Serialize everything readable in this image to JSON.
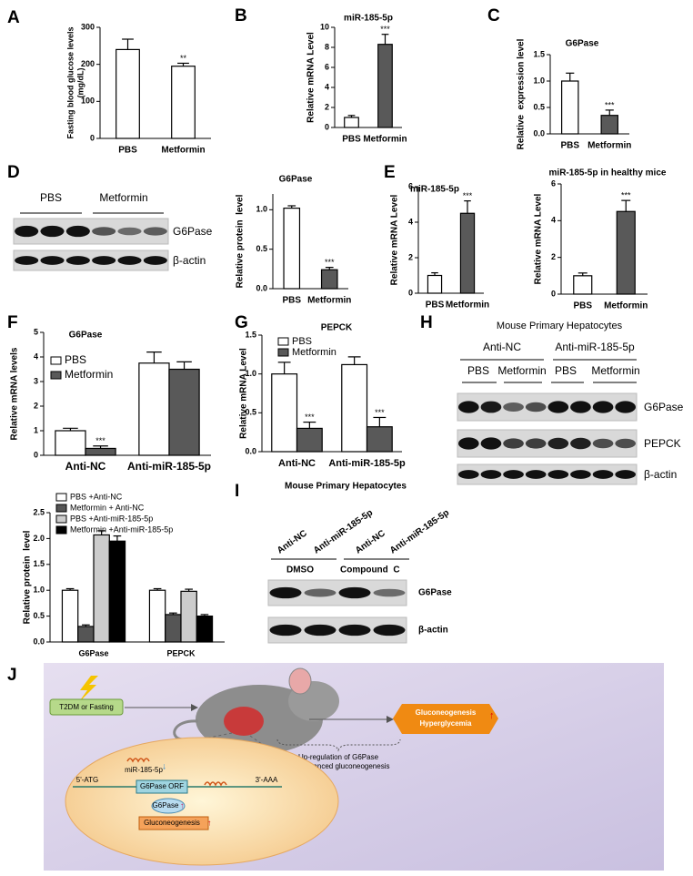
{
  "panel_labels": [
    "A",
    "B",
    "C",
    "D",
    "E",
    "F",
    "G",
    "H",
    "I",
    "J"
  ],
  "chart_data": [
    {
      "type": "bar",
      "y_label": [
        "Fasting blood glucose levels",
        "(mg/dL)"
      ],
      "categories": [
        "PBS",
        "Metformin"
      ],
      "series": [
        {
          "color": "#ffffff",
          "values": [
            240,
            195
          ],
          "errors": [
            28,
            8
          ],
          "annotations": [
            null,
            "**"
          ]
        }
      ],
      "ylim": [
        0,
        300
      ],
      "yticks": [
        0,
        100,
        200,
        300
      ]
    },
    {
      "type": "bar",
      "title": "miR-185-5p",
      "y_label": "Relative mRNA Level",
      "categories": [
        "PBS",
        "Metformin"
      ],
      "series": [
        {
          "color": "#595959",
          "values": [
            1,
            8.3
          ],
          "errors": [
            0.2,
            1.0
          ],
          "annotations": [
            null,
            "***"
          ]
        }
      ],
      "bar_colors": [
        "#ffffff",
        "#595959"
      ],
      "ylim": [
        0,
        10
      ],
      "yticks": [
        0,
        2,
        4,
        6,
        8,
        10
      ]
    },
    {
      "type": "bar",
      "title": "G6Pase",
      "y_label": "Relative  expression level",
      "categories": [
        "PBS",
        "Metformin"
      ],
      "series": [
        {
          "color": "#595959",
          "values": [
            1.0,
            0.35
          ],
          "errors": [
            0.15,
            0.1
          ],
          "annotations": [
            null,
            "***"
          ]
        }
      ],
      "bar_colors": [
        "#ffffff",
        "#595959"
      ],
      "ylim": [
        0,
        1.5
      ],
      "yticks": [
        {
          "value": 0,
          "label": "0.0"
        },
        0.5,
        {
          "value": 1,
          "label": "1.0"
        },
        1.5
      ]
    },
    {
      "type": "bar",
      "title": "G6Pase",
      "y_label": "Relative protein  level",
      "categories": [
        "PBS",
        "Metformin"
      ],
      "series": [
        {
          "color": "#595959",
          "values": [
            1.02,
            0.24
          ],
          "errors": [
            0.03,
            0.03
          ],
          "annotations": [
            null,
            "***"
          ]
        }
      ],
      "bar_colors": [
        "#ffffff",
        "#595959"
      ],
      "ylim": [
        0,
        1.2
      ],
      "yticks": [
        {
          "value": 0,
          "label": "0.0"
        },
        0.5,
        {
          "value": 1,
          "label": "1.0"
        }
      ]
    },
    {
      "type": "bar",
      "title": "miR-185-5p",
      "y_label": "Relative mRNA Level",
      "categories": [
        "PBS",
        "Metformin"
      ],
      "series": [
        {
          "color": "#595959",
          "values": [
            1.0,
            4.5
          ],
          "errors": [
            0.15,
            0.7
          ],
          "annotations": [
            null,
            "***"
          ]
        }
      ],
      "bar_colors": [
        "#ffffff",
        "#595959"
      ],
      "ylim": [
        0,
        6
      ],
      "yticks": [
        0,
        2,
        4,
        6
      ]
    },
    {
      "type": "bar",
      "title": "miR-185-5p in healthy mice",
      "y_label": "Relative mRNA Level",
      "categories": [
        "PBS",
        "Metformin"
      ],
      "series": [
        {
          "color": "#595959",
          "values": [
            1.0,
            4.5
          ],
          "errors": [
            0.15,
            0.6
          ],
          "annotations": [
            null,
            "***"
          ]
        }
      ],
      "bar_colors": [
        "#ffffff",
        "#595959"
      ],
      "ylim": [
        0,
        6
      ],
      "yticks": [
        0,
        2,
        4,
        6
      ]
    },
    {
      "type": "bar",
      "title": "G6Pase",
      "y_label": "Relative mRNA levels",
      "categories": [
        "Anti-NC",
        "Anti-miR-185-5p"
      ],
      "series": [
        {
          "name": "PBS",
          "color": "#ffffff",
          "values": [
            1.0,
            3.75
          ],
          "errors": [
            0.1,
            0.45
          ],
          "annotations": [
            null,
            null
          ]
        },
        {
          "name": "Metformin",
          "color": "#595959",
          "values": [
            0.28,
            3.5
          ],
          "errors": [
            0.1,
            0.3
          ],
          "annotations": [
            "***",
            null
          ]
        }
      ],
      "ylim": [
        0,
        5
      ],
      "yticks": [
        0,
        1,
        2,
        3,
        4,
        5
      ]
    },
    {
      "type": "bar",
      "title": "PEPCK",
      "y_label": "Relative mRNA Level",
      "categories": [
        "Anti-NC",
        "Anti-miR-185-5p"
      ],
      "series": [
        {
          "name": "PBS",
          "color": "#ffffff",
          "values": [
            1.0,
            1.12
          ],
          "errors": [
            0.15,
            0.1
          ],
          "annotations": [
            null,
            null
          ]
        },
        {
          "name": "Metformin",
          "color": "#595959",
          "values": [
            0.3,
            0.32
          ],
          "errors": [
            0.08,
            0.12
          ],
          "annotations": [
            "***",
            "***"
          ]
        }
      ],
      "ylim": [
        0,
        1.5
      ],
      "yticks": [
        {
          "value": 0,
          "label": "0.0"
        },
        0.5,
        {
          "value": 1,
          "label": "1.0"
        },
        1.5
      ]
    },
    {
      "type": "bar",
      "y_label": "Relative protein  level",
      "categories": [
        "G6Pase",
        "PEPCK"
      ],
      "series": [
        {
          "name": "PBS +Anti-NC",
          "color": "#ffffff",
          "values": [
            1.0,
            1.0
          ],
          "errors": [
            0.03,
            0.03
          ]
        },
        {
          "name": "Metformin + Anti-NC",
          "color": "#555555",
          "values": [
            0.3,
            0.53
          ],
          "errors": [
            0.03,
            0.03
          ]
        },
        {
          "name": "PBS +Anti-miR-185-5p",
          "color": "#cccccc",
          "values": [
            2.07,
            0.98
          ],
          "errors": [
            0.08,
            0.04
          ]
        },
        {
          "name": "Metformin +Anti-miR-185-5p",
          "color": "#000000",
          "values": [
            1.95,
            0.5
          ],
          "errors": [
            0.1,
            0.03
          ]
        }
      ],
      "ylim": [
        0,
        2.5
      ],
      "yticks": [
        {
          "value": 0,
          "label": "0.0"
        },
        0.5,
        {
          "value": 1,
          "label": "1.0"
        },
        1.5,
        {
          "value": 2,
          "label": "2.0"
        },
        2.5
      ]
    }
  ],
  "blots": {
    "D": {
      "groups": [
        "PBS",
        "Metformin"
      ],
      "proteins": [
        "G6Pase",
        "β-actin"
      ]
    },
    "H": {
      "title": "Mouse Primary Hepatocytes",
      "groups": [
        "Anti-NC",
        "Anti-miR-185-5p"
      ],
      "treatments": [
        "PBS",
        "Metformin",
        "PBS",
        "Metformin"
      ],
      "proteins": [
        "G6Pase",
        "PEPCK",
        "β-actin"
      ]
    },
    "I": {
      "title": "Mouse Primary Hepatocytes",
      "lanes": [
        "Anti-NC",
        "Anti-miR-185-5p",
        "Anti-NC",
        "Anti-miR-185-5p"
      ],
      "groups": [
        "DMSO",
        "Compound  C"
      ],
      "proteins": [
        "G6Pase",
        "β-actin"
      ]
    }
  },
  "diagram": {
    "trigger": "T2DM or Fasting",
    "outcome": [
      "Gluconeogenesis",
      "Hyperglycemia"
    ],
    "note": [
      "Up-regulation of G6Pase",
      "and enhanced gluconeogenesis"
    ],
    "mirna": "miR-185-5p",
    "five_prime": "5'-ATG",
    "orf": "G6Pase ORF",
    "three_prime": "3'-AAA",
    "protein": "G6Pase",
    "process": "Gluconeogenesis"
  }
}
